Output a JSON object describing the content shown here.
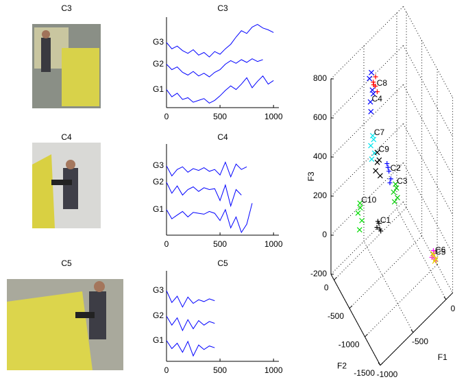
{
  "photos": [
    {
      "title": "C3"
    },
    {
      "title": "C4"
    },
    {
      "title": "C5"
    }
  ],
  "chart_data": [
    {
      "type": "line",
      "title": "C3",
      "x": [
        0,
        50,
        100,
        150,
        200,
        250,
        300,
        350,
        400,
        450,
        500,
        550,
        600,
        650,
        700,
        750,
        800,
        850,
        900,
        950,
        1000
      ],
      "xlim": [
        0,
        1050
      ],
      "xticks": [
        0,
        500,
        1000
      ],
      "ylim": [
        0,
        10
      ],
      "series": [
        {
          "name": "G1",
          "color": "#0000ff",
          "values": [
            2.0,
            1.2,
            1.6,
            0.9,
            1.1,
            0.6,
            0.8,
            1.0,
            0.5,
            0.8,
            1.3,
            1.9,
            2.4,
            2.0,
            2.6,
            3.3,
            2.2,
            2.9,
            3.5,
            2.6,
            3.0
          ]
        },
        {
          "name": "G2",
          "color": "#0000ff",
          "values": [
            4.8,
            4.2,
            4.5,
            3.9,
            3.6,
            4.0,
            3.5,
            3.8,
            3.4,
            3.9,
            4.2,
            4.8,
            5.2,
            4.9,
            5.3,
            5.0,
            5.4,
            5.1,
            5.3,
            null,
            null
          ]
        },
        {
          "name": "G3",
          "color": "#0000ff",
          "values": [
            7.2,
            6.5,
            6.8,
            6.3,
            6.0,
            6.4,
            5.8,
            6.1,
            5.6,
            6.2,
            5.9,
            6.5,
            7.0,
            7.8,
            8.5,
            8.2,
            8.9,
            9.2,
            8.8,
            8.6,
            8.3
          ]
        }
      ]
    },
    {
      "type": "line",
      "title": "C4",
      "x": [
        0,
        50,
        100,
        150,
        200,
        250,
        300,
        350,
        400,
        450,
        500,
        550,
        600,
        650,
        700,
        750,
        800
      ],
      "xlim": [
        0,
        1050
      ],
      "xticks": [
        0,
        500,
        1000
      ],
      "ylim": [
        0,
        10
      ],
      "series": [
        {
          "name": "G1",
          "color": "#0000ff",
          "values": [
            2.8,
            1.8,
            2.2,
            2.6,
            2.0,
            2.5,
            2.4,
            2.3,
            2.6,
            2.4,
            1.6,
            2.8,
            0.8,
            2.0,
            0.3,
            1.2,
            3.5
          ]
        },
        {
          "name": "G2",
          "color": "#0000ff",
          "values": [
            5.8,
            4.6,
            5.4,
            4.4,
            5.0,
            5.3,
            4.8,
            5.2,
            5.0,
            5.1,
            3.8,
            5.5,
            3.2,
            5.0,
            4.4,
            null,
            null
          ]
        },
        {
          "name": "G3",
          "color": "#0000ff",
          "values": [
            7.6,
            6.5,
            7.2,
            7.5,
            6.9,
            7.3,
            7.1,
            7.4,
            7.0,
            7.2,
            6.6,
            8.0,
            6.4,
            7.8,
            7.2,
            7.5,
            null
          ]
        }
      ]
    },
    {
      "type": "line",
      "title": "C5",
      "x": [
        0,
        50,
        100,
        150,
        200,
        250,
        300,
        350,
        400,
        450
      ],
      "xlim": [
        0,
        1050
      ],
      "xticks": [
        0,
        500,
        1000
      ],
      "ylim": [
        0,
        10
      ],
      "series": [
        {
          "name": "G1",
          "color": "#0000ff",
          "values": [
            2.3,
            1.4,
            2.0,
            1.0,
            2.2,
            0.6,
            1.8,
            1.3,
            1.7,
            1.5
          ]
        },
        {
          "name": "G2",
          "color": "#0000ff",
          "values": [
            5.0,
            4.0,
            4.8,
            3.4,
            4.6,
            3.6,
            4.5,
            4.0,
            4.4,
            4.2
          ]
        },
        {
          "name": "G3",
          "color": "#0000ff",
          "values": [
            7.8,
            6.5,
            7.2,
            6.0,
            7.1,
            6.4,
            6.8,
            6.6,
            6.9,
            6.7
          ]
        }
      ]
    },
    {
      "type": "scatter3d",
      "xlabel": "F1",
      "ylabel": "F2",
      "zlabel": "F3",
      "xlim": [
        -1000,
        100
      ],
      "ylim": [
        -1500,
        100
      ],
      "zlim": [
        -200,
        800
      ],
      "xticks": [
        -1000,
        -500,
        0
      ],
      "yticks": [
        -1500,
        -1000,
        -500,
        0
      ],
      "zticks": [
        -200,
        0,
        200,
        400,
        600,
        800
      ],
      "grid": true,
      "series": [
        {
          "name": "C8",
          "color": "#ff0000",
          "marker": "+",
          "x": [
            -560,
            -600,
            -570,
            -590,
            -550
          ],
          "y": [
            -400,
            -420,
            -430,
            -410,
            -440
          ],
          "z": [
            760,
            800,
            820,
            780,
            740
          ]
        },
        {
          "name": "C4",
          "color": "#0000ff",
          "marker": "x",
          "x": [
            -630,
            -610,
            -640,
            -620,
            -600,
            -625
          ],
          "y": [
            -390,
            -410,
            -380,
            -400,
            -420,
            -395
          ],
          "z": [
            700,
            760,
            820,
            850,
            740,
            650
          ]
        },
        {
          "name": "C7",
          "color": "#00e5ee",
          "marker": "x",
          "x": [
            -600,
            -620,
            -580,
            -610,
            -590
          ],
          "y": [
            -400,
            -380,
            -420,
            -390,
            -410
          ],
          "z": [
            520,
            470,
            430,
            400,
            500
          ]
        },
        {
          "name": "C9",
          "color": "#000000",
          "marker": "x",
          "x": [
            -540,
            -520,
            -560,
            -500,
            -530
          ],
          "y": [
            -420,
            -440,
            -410,
            -430,
            -400
          ],
          "z": [
            420,
            380,
            330,
            290,
            360
          ]
        },
        {
          "name": "C2",
          "color": "#0000ff",
          "marker": "+",
          "x": [
            -400,
            -420,
            -380,
            -410,
            -390
          ],
          "y": [
            -500,
            -480,
            -520,
            -490,
            -510
          ],
          "z": [
            300,
            340,
            260,
            320,
            240
          ]
        },
        {
          "name": "C3",
          "color": "#00cc00",
          "marker": "x",
          "x": [
            -300,
            -320,
            -280,
            -290,
            -310
          ],
          "y": [
            -500,
            -480,
            -520,
            -510,
            -490
          ],
          "z": [
            200,
            160,
            130,
            180,
            110
          ]
        },
        {
          "name": "C10",
          "color": "#00dd00",
          "marker": "x",
          "x": [
            -700,
            -720,
            -680,
            -710,
            -690
          ],
          "y": [
            -200,
            -180,
            -220,
            -210,
            -190
          ],
          "z": [
            150,
            100,
            60,
            20,
            120
          ]
        },
        {
          "name": "C1",
          "color": "#000000",
          "marker": "+",
          "x": [
            -600,
            -620,
            -580,
            -610,
            -590
          ],
          "y": [
            -600,
            -580,
            -620,
            -590,
            -610
          ],
          "z": [
            130,
            110,
            90,
            140,
            100
          ]
        },
        {
          "name": "C6",
          "color": "#ff00ff",
          "marker": "+",
          "x": [
            0,
            -20,
            20,
            -10,
            10
          ],
          "y": [
            -1100,
            -1080,
            -1120,
            -1110,
            -1090
          ],
          "z": [
            -80,
            -100,
            -120,
            -60,
            -110
          ]
        },
        {
          "name": "C5",
          "color": "#e6d200",
          "marker": "x",
          "x": [
            10,
            30,
            0,
            20
          ],
          "y": [
            -1080,
            -1100,
            -1070,
            -1090
          ],
          "z": [
            -100,
            -120,
            -90,
            -130
          ]
        }
      ]
    }
  ]
}
